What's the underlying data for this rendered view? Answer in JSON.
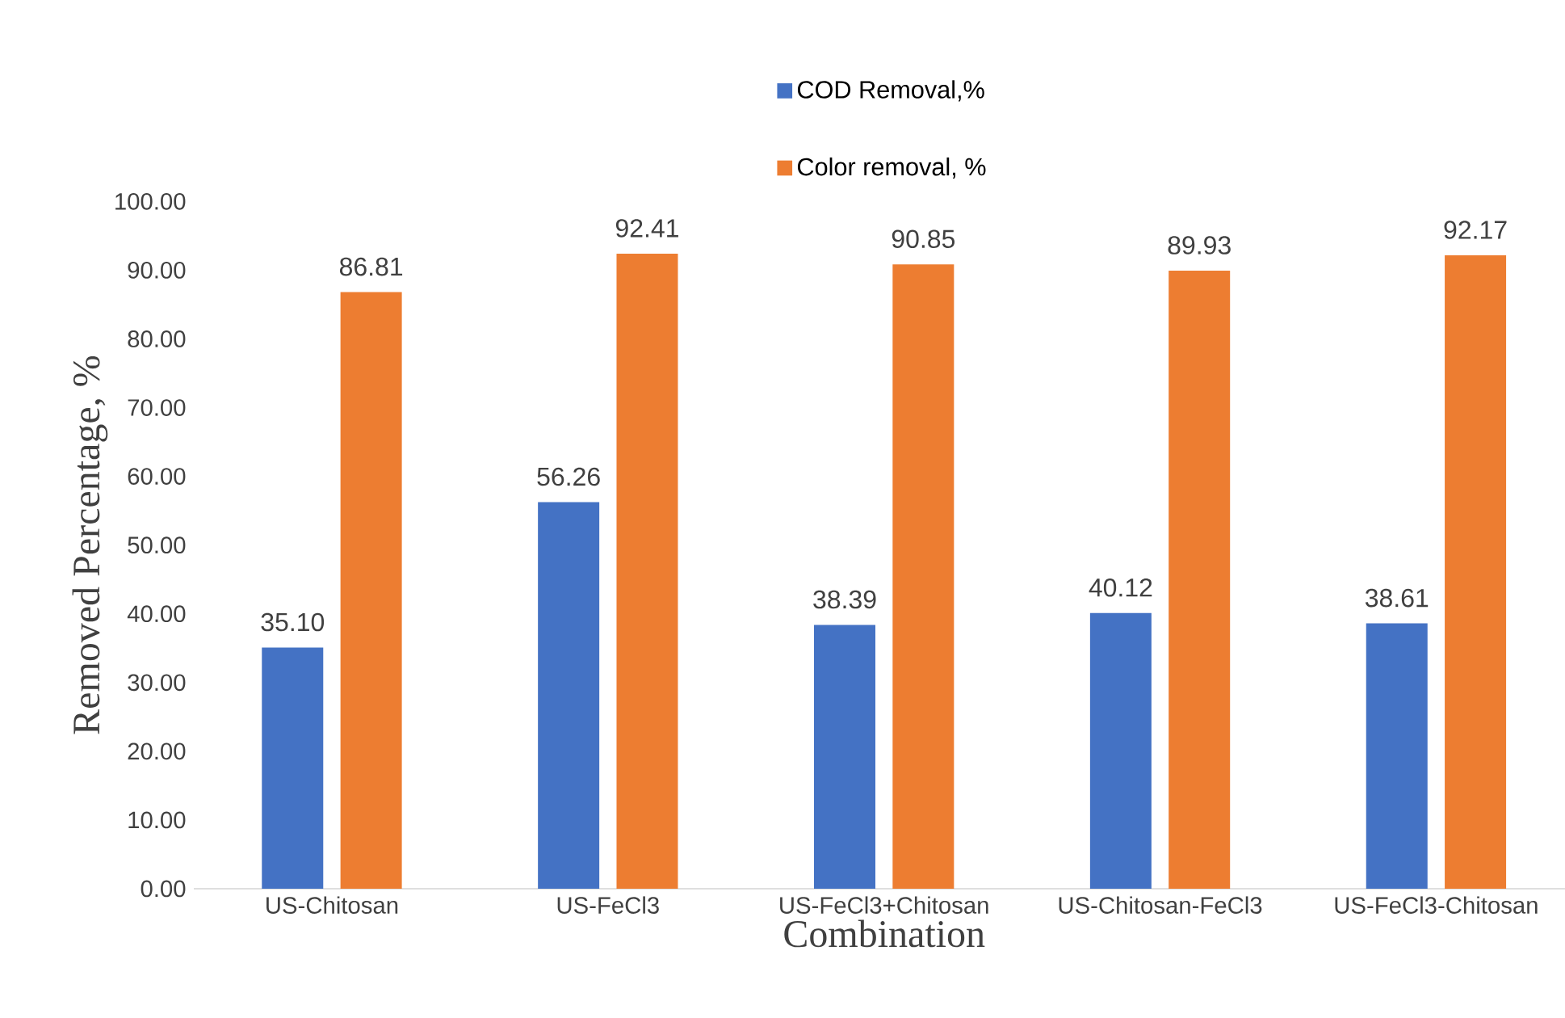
{
  "chart_data": {
    "type": "bar",
    "xlabel": "Combination",
    "ylabel": "Removed Percentage, %",
    "categories": [
      "US-Chitosan",
      "US-FeCl3",
      "US-FeCl3+Chitosan",
      "US-Chitosan-FeCl3",
      "US-FeCl3-Chitosan"
    ],
    "series": [
      {
        "name": "COD Removal,%",
        "color": "#4472c4",
        "values": [
          35.1,
          56.26,
          38.39,
          40.12,
          38.61
        ],
        "value_labels": [
          "35.10",
          "56.26",
          "38.39",
          "40.12",
          "38.61"
        ]
      },
      {
        "name": "Color removal, %",
        "color": "#ed7d31",
        "values": [
          86.81,
          92.41,
          90.85,
          89.93,
          92.17
        ],
        "value_labels": [
          "86.81",
          "92.41",
          "90.85",
          "89.93",
          "92.17"
        ]
      }
    ],
    "ylim": [
      0,
      100
    ],
    "yticks": [
      {
        "value": 0,
        "label": "0.00"
      },
      {
        "value": 10,
        "label": "10.00"
      },
      {
        "value": 20,
        "label": "20.00"
      },
      {
        "value": 30,
        "label": "30.00"
      },
      {
        "value": 40,
        "label": "40.00"
      },
      {
        "value": 50,
        "label": "50.00"
      },
      {
        "value": 60,
        "label": "60.00"
      },
      {
        "value": 70,
        "label": "70.00"
      },
      {
        "value": 80,
        "label": "80.00"
      },
      {
        "value": 90,
        "label": "90.00"
      },
      {
        "value": 100,
        "label": "100.00"
      }
    ],
    "grid": false,
    "legend": "top"
  }
}
